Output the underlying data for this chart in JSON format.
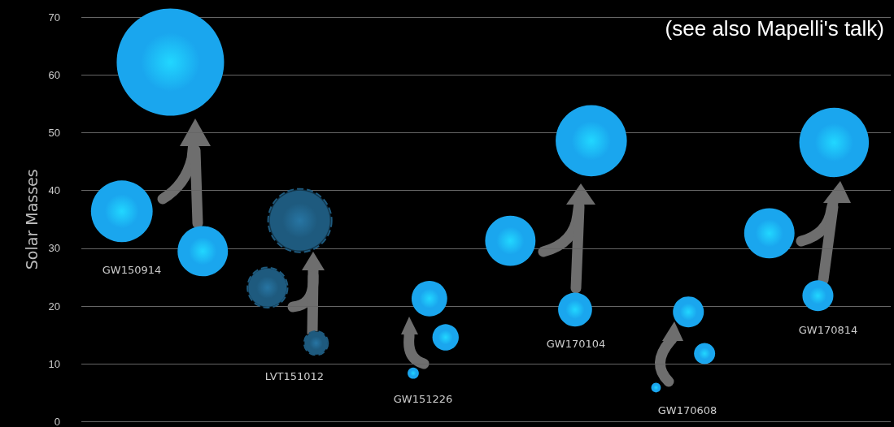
{
  "chart_data": {
    "type": "bubble",
    "ylabel": "Solar Masses",
    "ylim": [
      0,
      70
    ],
    "yticks": [
      0,
      10,
      20,
      30,
      40,
      50,
      60,
      70
    ],
    "grid": "y",
    "tick_labels": "y",
    "categories": [
      null,
      null,
      null,
      null,
      null,
      null,
      null,
      null,
      null,
      null,
      null,
      null,
      null,
      null,
      null,
      null,
      null,
      null,
      null,
      null,
      null,
      null,
      null,
      null,
      null,
      null,
      null,
      null,
      null,
      null,
      null,
      null,
      null,
      null,
      null,
      null,
      null,
      null,
      null,
      null,
      null,
      null,
      null,
      null,
      null,
      null,
      null,
      null,
      null,
      null
    ],
    "series": [
      {
        "color": "#1aa6ee",
        "values": [
          null,
          null,
          36.4,
          null,
          null,
          62.2,
          null,
          29.5,
          null,
          null,
          null,
          null,
          null,
          null,
          null,
          null,
          null,
          null,
          null,
          null,
          8.4,
          21.3,
          14.6,
          null,
          null,
          null,
          31.3,
          null,
          null,
          null,
          19.4,
          48.6,
          null,
          null,
          null,
          5.9,
          null,
          19,
          11.8,
          null,
          null,
          null,
          32.6,
          null,
          null,
          21.8,
          48.3,
          null,
          null,
          null
        ],
        "sizes": [
          null,
          null,
          0.33,
          null,
          null,
          1,
          null,
          0.22,
          null,
          null,
          null,
          null,
          null,
          null,
          null,
          null,
          null,
          null,
          null,
          null,
          0.011,
          0.11,
          0.06,
          null,
          null,
          null,
          0.22,
          null,
          null,
          null,
          0.1,
          0.44,
          null,
          null,
          null,
          0.008,
          null,
          0.083,
          0.039,
          null,
          null,
          null,
          0.22,
          null,
          null,
          0.083,
          0.42,
          null,
          null,
          null
        ]
      },
      {
        "color": "#1e5a7e",
        "line_style": "dashed",
        "values": [
          null,
          null,
          null,
          null,
          null,
          null,
          null,
          null,
          null,
          null,
          null,
          23.2,
          null,
          34.8,
          13.6,
          null,
          null,
          null,
          null,
          null,
          null,
          null,
          null,
          null,
          null,
          null,
          null,
          null,
          null,
          null,
          null,
          null,
          null,
          null,
          null,
          null,
          null,
          null,
          null,
          null,
          null,
          null,
          null,
          null,
          null,
          null,
          null,
          null,
          null,
          null
        ],
        "sizes": [
          null,
          null,
          null,
          null,
          null,
          null,
          null,
          null,
          null,
          null,
          null,
          0.14,
          null,
          0.35,
          0.05,
          null,
          null,
          null,
          null,
          null,
          null,
          null,
          null,
          null,
          null,
          null,
          null,
          null,
          null,
          null,
          null,
          null,
          null,
          null,
          null,
          null,
          null,
          null,
          null,
          null,
          null,
          null,
          null,
          null,
          null,
          null,
          null,
          null,
          null,
          null
        ]
      }
    ],
    "annotations": [
      "GW150914",
      "LVT151012",
      "GW151226",
      "GW170104",
      "GW170608",
      "GW170814",
      "(see also Mapelli's talk)"
    ]
  }
}
